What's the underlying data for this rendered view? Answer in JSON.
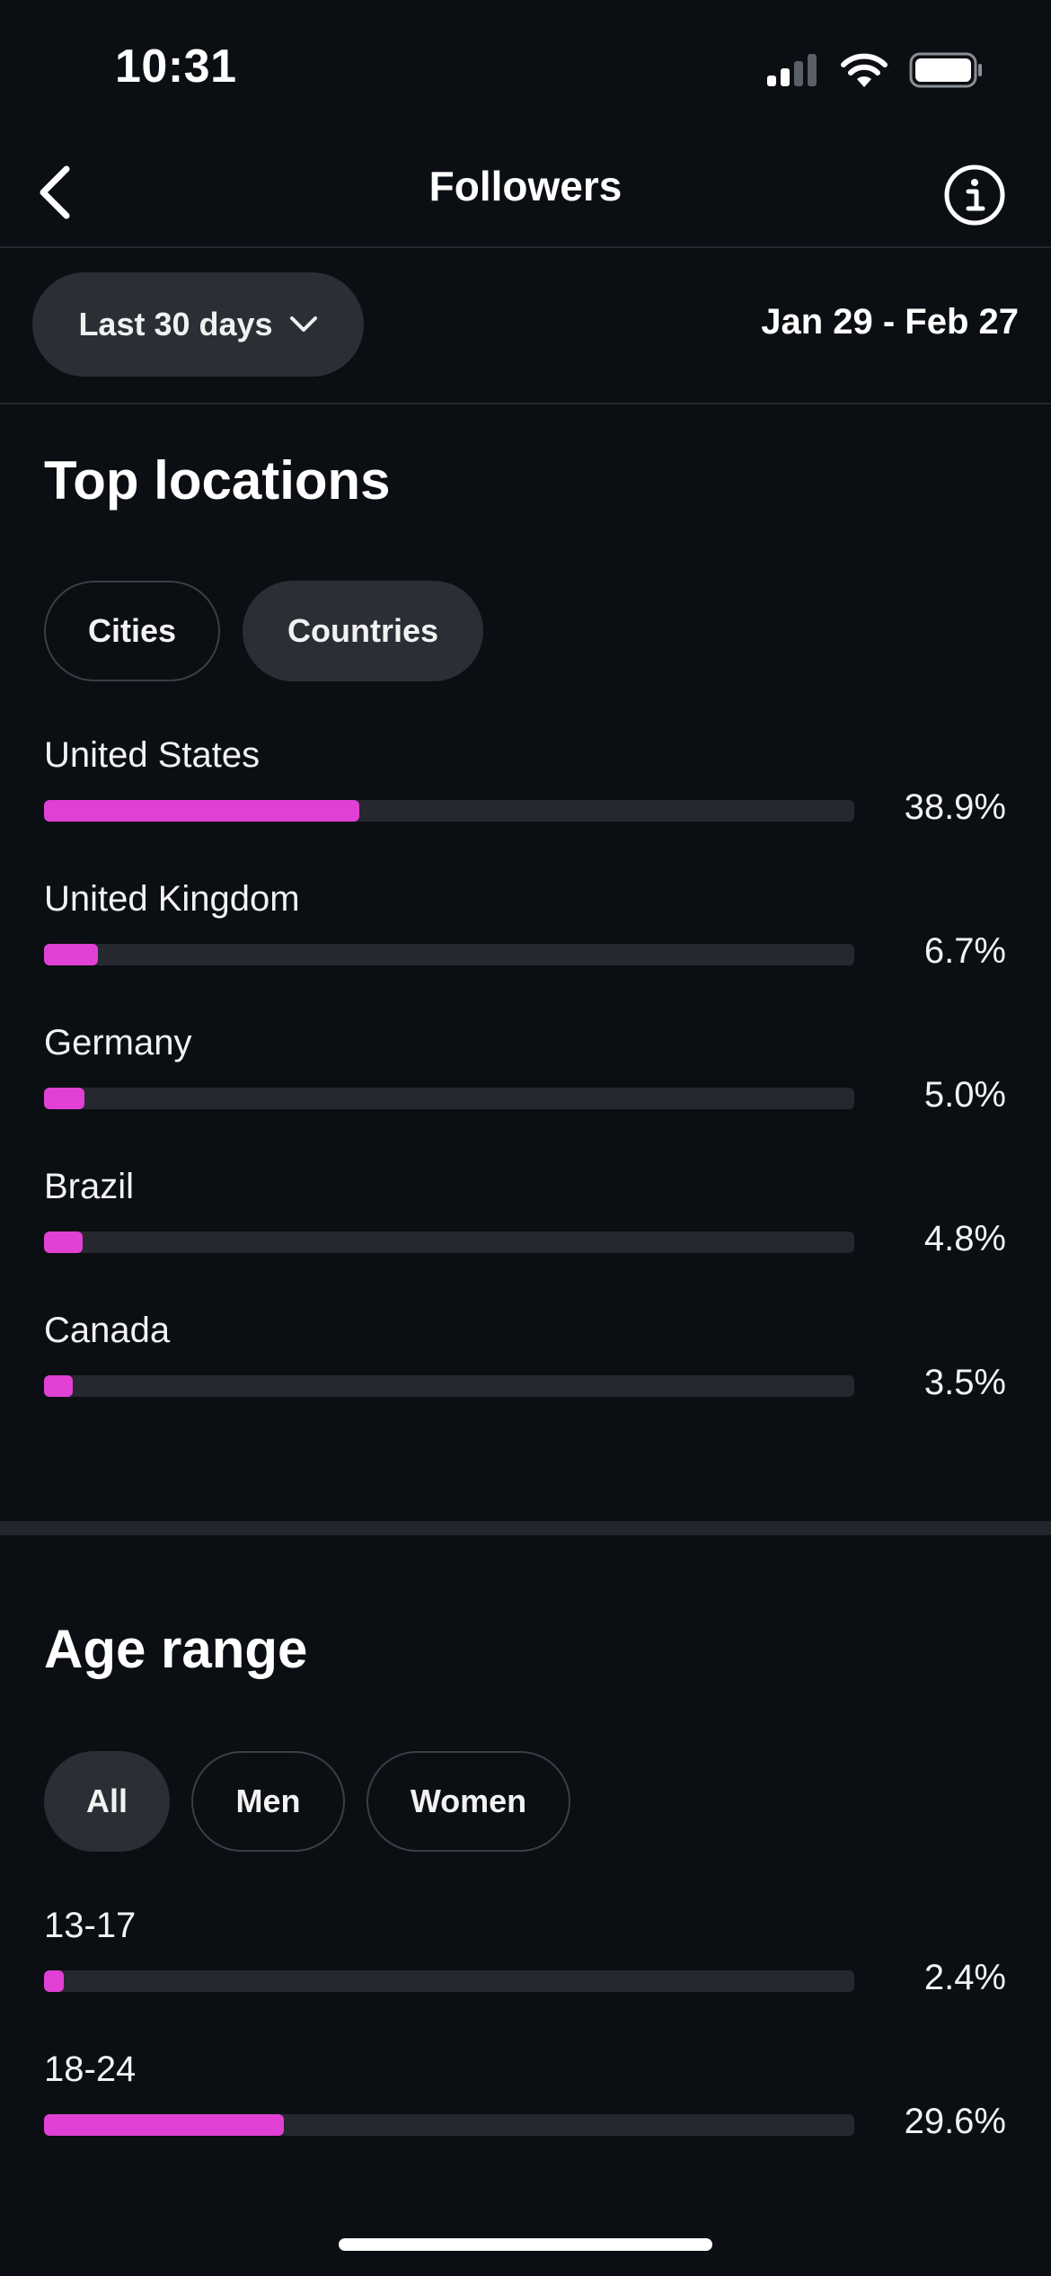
{
  "status_bar": {
    "time": "10:31",
    "icons": [
      "cellular-signal-icon",
      "wifi-icon",
      "battery-icon"
    ]
  },
  "header": {
    "title": "Followers",
    "back_icon": "chevron-left-icon",
    "info_icon": "info-icon"
  },
  "filter": {
    "period_label": "Last 30 days",
    "date_range": "Jan 29 - Feb 27"
  },
  "top_locations": {
    "title": "Top locations",
    "tabs": [
      {
        "label": "Cities",
        "active": false
      },
      {
        "label": "Countries",
        "active": true
      }
    ],
    "rows": [
      {
        "label": "United States",
        "value": "38.9%",
        "fraction": 0.389
      },
      {
        "label": "United Kingdom",
        "value": "6.7%",
        "fraction": 0.067
      },
      {
        "label": "Germany",
        "value": "5.0%",
        "fraction": 0.05
      },
      {
        "label": "Brazil",
        "value": "4.8%",
        "fraction": 0.048
      },
      {
        "label": "Canada",
        "value": "3.5%",
        "fraction": 0.035
      }
    ]
  },
  "age_range": {
    "title": "Age range",
    "tabs": [
      {
        "label": "All",
        "active": true
      },
      {
        "label": "Men",
        "active": false
      },
      {
        "label": "Women",
        "active": false
      }
    ],
    "rows": [
      {
        "label": "13-17",
        "value": "2.4%",
        "fraction": 0.024
      },
      {
        "label": "18-24",
        "value": "29.6%",
        "fraction": 0.296
      }
    ]
  },
  "colors": {
    "background": "#0b0e12",
    "bar_fill": "#e040d4",
    "bar_track": "#25282e",
    "pill_active": "#2a2e35"
  }
}
